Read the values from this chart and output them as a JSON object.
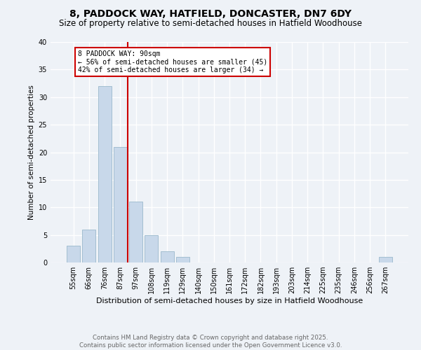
{
  "title1": "8, PADDOCK WAY, HATFIELD, DONCASTER, DN7 6DY",
  "title2": "Size of property relative to semi-detached houses in Hatfield Woodhouse",
  "xlabel": "Distribution of semi-detached houses by size in Hatfield Woodhouse",
  "ylabel": "Number of semi-detached properties",
  "footnote": "Contains HM Land Registry data © Crown copyright and database right 2025.\nContains public sector information licensed under the Open Government Licence v3.0.",
  "bin_labels": [
    "55sqm",
    "66sqm",
    "76sqm",
    "87sqm",
    "97sqm",
    "108sqm",
    "119sqm",
    "129sqm",
    "140sqm",
    "150sqm",
    "161sqm",
    "172sqm",
    "182sqm",
    "193sqm",
    "203sqm",
    "214sqm",
    "225sqm",
    "235sqm",
    "246sqm",
    "256sqm",
    "267sqm"
  ],
  "bar_values": [
    3,
    6,
    32,
    21,
    11,
    5,
    2,
    1,
    0,
    0,
    0,
    0,
    0,
    0,
    0,
    0,
    0,
    0,
    0,
    0,
    1
  ],
  "bar_color": "#c8d8ea",
  "bar_edgecolor": "#9ab8cc",
  "vline_x": 3.5,
  "vline_color": "#cc0000",
  "annotation_text": "8 PADDOCK WAY: 90sqm\n← 56% of semi-detached houses are smaller (45)\n42% of semi-detached houses are larger (34) →",
  "annotation_box_color": "#cc0000",
  "ylim": [
    0,
    40
  ],
  "yticks": [
    0,
    5,
    10,
    15,
    20,
    25,
    30,
    35,
    40
  ],
  "bg_color": "#eef2f7",
  "grid_color": "#ffffff",
  "title_fontsize": 10,
  "subtitle_fontsize": 8.5,
  "footnote_fontsize": 6.2,
  "ylabel_fontsize": 7.5,
  "xlabel_fontsize": 8,
  "tick_fontsize": 7,
  "annot_fontsize": 7
}
